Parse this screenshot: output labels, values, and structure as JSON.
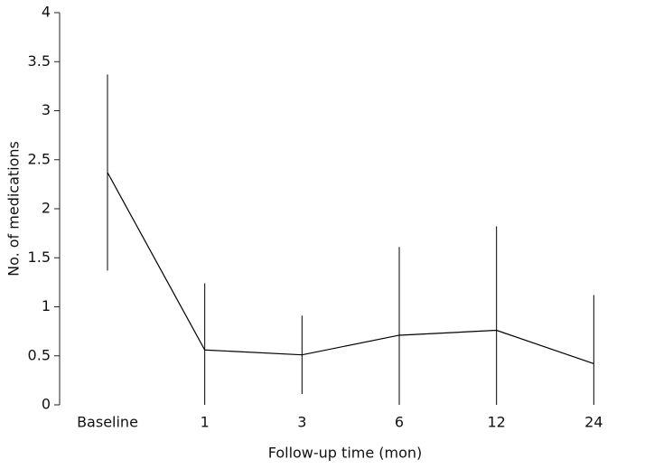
{
  "chart_data": {
    "type": "line",
    "x_label": "Follow-up time (mon)",
    "y_label": "No. of medications",
    "categories": [
      "Baseline",
      "1",
      "3",
      "6",
      "12",
      "24"
    ],
    "series": [
      {
        "color": "#000000",
        "values": [
          2.37,
          0.56,
          0.51,
          0.71,
          0.76,
          0.42
        ],
        "errors": [
          1.0,
          0.68,
          0.4,
          0.9,
          1.06,
          0.7
        ]
      }
    ],
    "ylim": [
      0,
      4
    ],
    "yticks": [
      0,
      0.5,
      1,
      1.5,
      2,
      2.5,
      3,
      3.5,
      4
    ]
  }
}
